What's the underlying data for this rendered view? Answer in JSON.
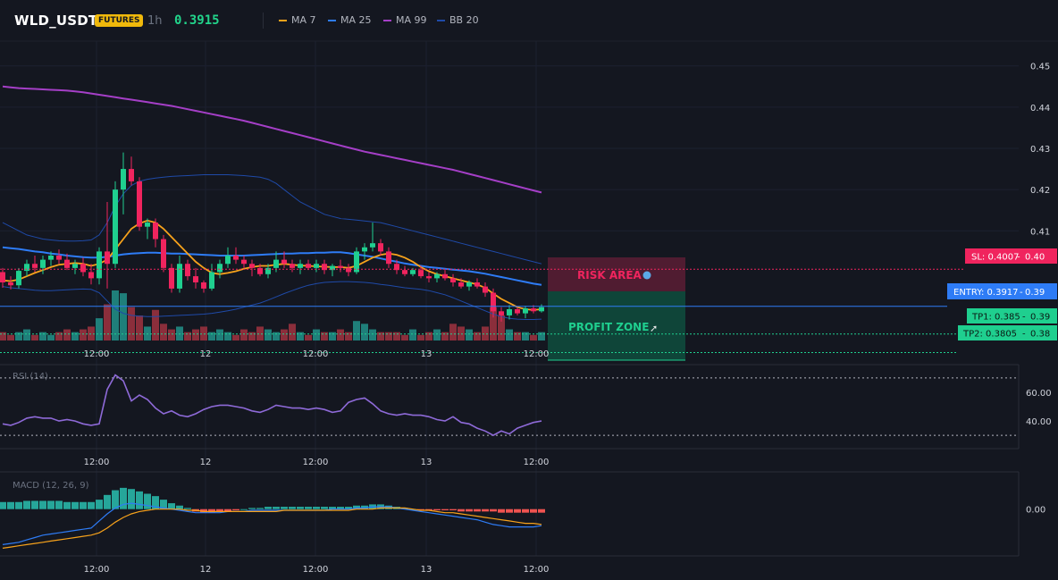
{
  "header": {
    "symbol": "WLD_USDT",
    "badge": "FUTURES",
    "timeframe": "1h",
    "price": "0.3915",
    "indicators": [
      {
        "label": "MA 7",
        "color": "#f7a21b"
      },
      {
        "label": "MA 25",
        "color": "#2e7cf6"
      },
      {
        "label": "MA 99",
        "color": "#a53fc7"
      },
      {
        "label": "BB 20",
        "color": "#1f4aa8"
      }
    ]
  },
  "colors": {
    "up": "#1fcf8f",
    "down": "#f0245e",
    "vol_up": "#1f7f7a",
    "vol_down": "#8b2e3b",
    "rsi": "#8e6ad8",
    "macd_line": "#2e7cf6",
    "signal_line": "#f7a21b",
    "entry": "#2e7cf6",
    "sl": "#f0245e",
    "tp": "#1fcf8f"
  },
  "price_axis_labels": [
    "0.45",
    "0.44",
    "0.43",
    "0.42",
    "0.41"
  ],
  "time_labels": [
    "12:00",
    "12",
    "12:00",
    "13",
    "12:00"
  ],
  "levels": {
    "sl": {
      "label": "SL: 0.4007",
      "axis": "0.40",
      "value": 0.4007
    },
    "entry": {
      "label": "ENTRY: 0.3917",
      "axis": "0.39",
      "value": 0.3917
    },
    "tp1": {
      "label": "TP1: 0.385",
      "axis": "0.39",
      "value": 0.385
    },
    "tp2": {
      "label": "TP2: 0.3805",
      "axis": "0.38",
      "value": 0.3805
    }
  },
  "zones": {
    "risk": "RISK AREA",
    "profit": "PROFIT ZONE"
  },
  "rsi": {
    "title": "RSI (14)",
    "axis_labels": [
      "60.00",
      "40.00"
    ],
    "upper": 70,
    "lower": 30
  },
  "macd": {
    "title": "MACD (12, 26, 9)",
    "axis_labels": [
      "0.00"
    ]
  },
  "chart_data": {
    "type": "candlestick",
    "ylim": [
      0.378,
      0.456
    ],
    "candles": [
      [
        0.4,
        0.401,
        0.3962,
        0.3975
      ],
      [
        0.3975,
        0.399,
        0.3958,
        0.3968
      ],
      [
        0.3968,
        0.401,
        0.396,
        0.4003
      ],
      [
        0.4003,
        0.403,
        0.399,
        0.402
      ],
      [
        0.402,
        0.404,
        0.4,
        0.401
      ],
      [
        0.401,
        0.404,
        0.3995,
        0.403
      ],
      [
        0.403,
        0.405,
        0.4015,
        0.404
      ],
      [
        0.404,
        0.4055,
        0.402,
        0.403
      ],
      [
        0.403,
        0.4045,
        0.4005,
        0.401
      ],
      [
        0.401,
        0.403,
        0.3995,
        0.402
      ],
      [
        0.402,
        0.4035,
        0.399,
        0.4
      ],
      [
        0.4,
        0.402,
        0.397,
        0.3985
      ],
      [
        0.3985,
        0.406,
        0.397,
        0.405
      ],
      [
        0.405,
        0.417,
        0.396,
        0.402
      ],
      [
        0.402,
        0.422,
        0.401,
        0.42
      ],
      [
        0.42,
        0.429,
        0.414,
        0.425
      ],
      [
        0.425,
        0.428,
        0.421,
        0.422
      ],
      [
        0.422,
        0.423,
        0.41,
        0.411
      ],
      [
        0.411,
        0.413,
        0.408,
        0.412
      ],
      [
        0.412,
        0.413,
        0.406,
        0.408
      ],
      [
        0.408,
        0.409,
        0.4,
        0.401
      ],
      [
        0.401,
        0.402,
        0.395,
        0.396
      ],
      [
        0.396,
        0.404,
        0.395,
        0.402
      ],
      [
        0.402,
        0.403,
        0.398,
        0.399
      ],
      [
        0.399,
        0.401,
        0.396,
        0.3975
      ],
      [
        0.3975,
        0.398,
        0.395,
        0.396
      ],
      [
        0.396,
        0.402,
        0.3955,
        0.4
      ],
      [
        0.4,
        0.403,
        0.3985,
        0.402
      ],
      [
        0.402,
        0.406,
        0.401,
        0.404
      ],
      [
        0.404,
        0.406,
        0.402,
        0.403
      ],
      [
        0.403,
        0.404,
        0.401,
        0.402
      ],
      [
        0.402,
        0.403,
        0.399,
        0.401
      ],
      [
        0.401,
        0.402,
        0.399,
        0.3995
      ],
      [
        0.3995,
        0.402,
        0.3985,
        0.401
      ],
      [
        0.401,
        0.405,
        0.4,
        0.403
      ],
      [
        0.403,
        0.405,
        0.401,
        0.402
      ],
      [
        0.402,
        0.403,
        0.4,
        0.401
      ],
      [
        0.401,
        0.403,
        0.3995,
        0.402
      ],
      [
        0.402,
        0.403,
        0.4005,
        0.401
      ],
      [
        0.401,
        0.403,
        0.4,
        0.402
      ],
      [
        0.402,
        0.403,
        0.3995,
        0.4005
      ],
      [
        0.4005,
        0.402,
        0.399,
        0.4015
      ],
      [
        0.4015,
        0.403,
        0.4,
        0.401
      ],
      [
        0.401,
        0.402,
        0.399,
        0.4
      ],
      [
        0.4,
        0.406,
        0.3995,
        0.405
      ],
      [
        0.405,
        0.407,
        0.403,
        0.406
      ],
      [
        0.406,
        0.412,
        0.405,
        0.407
      ],
      [
        0.407,
        0.408,
        0.404,
        0.405
      ],
      [
        0.405,
        0.406,
        0.401,
        0.402
      ],
      [
        0.402,
        0.403,
        0.3995,
        0.4005
      ],
      [
        0.4005,
        0.4015,
        0.399,
        0.3995
      ],
      [
        0.3995,
        0.401,
        0.399,
        0.4005
      ],
      [
        0.4005,
        0.4015,
        0.3985,
        0.399
      ],
      [
        0.399,
        0.4,
        0.3975,
        0.3985
      ],
      [
        0.3985,
        0.4,
        0.3975,
        0.3995
      ],
      [
        0.3995,
        0.4005,
        0.398,
        0.3985
      ],
      [
        0.3985,
        0.3995,
        0.3965,
        0.3975
      ],
      [
        0.3975,
        0.3985,
        0.396,
        0.3965
      ],
      [
        0.3965,
        0.398,
        0.3955,
        0.3975
      ],
      [
        0.3975,
        0.3985,
        0.396,
        0.3965
      ],
      [
        0.3965,
        0.3975,
        0.394,
        0.395
      ],
      [
        0.395,
        0.396,
        0.389,
        0.3905
      ],
      [
        0.3905,
        0.3915,
        0.388,
        0.3895
      ],
      [
        0.3895,
        0.392,
        0.3885,
        0.391
      ],
      [
        0.391,
        0.3915,
        0.3895,
        0.39
      ],
      [
        0.39,
        0.3918,
        0.3888,
        0.3912
      ],
      [
        0.3912,
        0.392,
        0.39,
        0.3905
      ],
      [
        0.3905,
        0.3922,
        0.3902,
        0.3915
      ]
    ],
    "volume": [
      3,
      2,
      3,
      4,
      2,
      3,
      2,
      3,
      4,
      3,
      4,
      5,
      8,
      13,
      18,
      17,
      12,
      9,
      5,
      11,
      6,
      4,
      5,
      3,
      4,
      5,
      3,
      4,
      3,
      2,
      4,
      3,
      5,
      4,
      3,
      4,
      6,
      3,
      2,
      4,
      3,
      3,
      4,
      3,
      7,
      6,
      4,
      3,
      3,
      3,
      2,
      4,
      2,
      3,
      4,
      3,
      6,
      5,
      4,
      3,
      5,
      12,
      9,
      4,
      3,
      3,
      2,
      3
    ],
    "ma7": [
      0.398,
      0.3978,
      0.3982,
      0.399,
      0.3998,
      0.4005,
      0.4012,
      0.4018,
      0.402,
      0.4022,
      0.402,
      0.4015,
      0.402,
      0.403,
      0.4055,
      0.408,
      0.4105,
      0.4118,
      0.4125,
      0.412,
      0.4105,
      0.4085,
      0.4065,
      0.4045,
      0.4025,
      0.401,
      0.3998,
      0.3995,
      0.3998,
      0.4002,
      0.4008,
      0.4012,
      0.4015,
      0.4015,
      0.4018,
      0.402,
      0.4018,
      0.4016,
      0.4015,
      0.4014,
      0.4013,
      0.4012,
      0.4012,
      0.401,
      0.4015,
      0.4025,
      0.4035,
      0.4042,
      0.4045,
      0.4042,
      0.4035,
      0.4025,
      0.4012,
      0.4002,
      0.3995,
      0.399,
      0.3985,
      0.398,
      0.3975,
      0.397,
      0.3962,
      0.3948,
      0.3935,
      0.3925,
      0.3915,
      0.391,
      0.3908,
      0.391
    ],
    "ma25": [
      0.406,
      0.4058,
      0.4056,
      0.4053,
      0.405,
      0.4048,
      0.4045,
      0.4043,
      0.404,
      0.4038,
      0.4036,
      0.4035,
      0.4035,
      0.4037,
      0.404,
      0.4043,
      0.4045,
      0.4046,
      0.4047,
      0.4047,
      0.4046,
      0.4045,
      0.4045,
      0.4044,
      0.4043,
      0.4042,
      0.4041,
      0.404,
      0.404,
      0.404,
      0.404,
      0.4041,
      0.4042,
      0.4043,
      0.4044,
      0.4045,
      0.4045,
      0.4046,
      0.4046,
      0.4047,
      0.4047,
      0.4048,
      0.4048,
      0.4046,
      0.4043,
      0.404,
      0.4037,
      0.4033,
      0.4029,
      0.4025,
      0.4021,
      0.4018,
      0.4015,
      0.4012,
      0.401,
      0.4008,
      0.4006,
      0.4004,
      0.4002,
      0.3999,
      0.3996,
      0.3992,
      0.3988,
      0.3984,
      0.398,
      0.3976,
      0.3972,
      0.3969
    ],
    "ma99": [
      0.445,
      0.4448,
      0.4446,
      0.4445,
      0.4444,
      0.4443,
      0.4442,
      0.4441,
      0.444,
      0.4438,
      0.4436,
      0.4433,
      0.443,
      0.4427,
      0.4424,
      0.4421,
      0.4418,
      0.4415,
      0.4412,
      0.4409,
      0.4406,
      0.4403,
      0.4399,
      0.4395,
      0.4391,
      0.4387,
      0.4383,
      0.4379,
      0.4375,
      0.4371,
      0.4367,
      0.4362,
      0.4357,
      0.4352,
      0.4347,
      0.4342,
      0.4337,
      0.4332,
      0.4327,
      0.4322,
      0.4317,
      0.4312,
      0.4307,
      0.4302,
      0.4297,
      0.4292,
      0.4288,
      0.4284,
      0.428,
      0.4276,
      0.4272,
      0.4268,
      0.4264,
      0.426,
      0.4256,
      0.4252,
      0.4248,
      0.4243,
      0.4238,
      0.4233,
      0.4228,
      0.4223,
      0.4218,
      0.4213,
      0.4208,
      0.4203,
      0.4198,
      0.4193
    ],
    "bb_upper": [
      0.412,
      0.411,
      0.41,
      0.409,
      0.4085,
      0.408,
      0.4078,
      0.4076,
      0.4075,
      0.4075,
      0.4076,
      0.4078,
      0.409,
      0.412,
      0.416,
      0.419,
      0.421,
      0.422,
      0.4225,
      0.4228,
      0.423,
      0.4232,
      0.4233,
      0.4234,
      0.4235,
      0.4236,
      0.4236,
      0.4236,
      0.4236,
      0.4235,
      0.4234,
      0.4232,
      0.423,
      0.4225,
      0.4215,
      0.42,
      0.4185,
      0.417,
      0.416,
      0.415,
      0.414,
      0.4135,
      0.413,
      0.4128,
      0.4126,
      0.4124,
      0.4122,
      0.412,
      0.4115,
      0.411,
      0.4105,
      0.41,
      0.4095,
      0.409,
      0.4085,
      0.408,
      0.4075,
      0.407,
      0.4065,
      0.406,
      0.4055,
      0.405,
      0.4045,
      0.404,
      0.4035,
      0.403,
      0.4025,
      0.402
    ],
    "bb_lower": [
      0.3965,
      0.3962,
      0.396,
      0.3958,
      0.3956,
      0.3955,
      0.3955,
      0.3956,
      0.3957,
      0.3958,
      0.3959,
      0.3958,
      0.395,
      0.393,
      0.391,
      0.39,
      0.3895,
      0.3893,
      0.3892,
      0.3892,
      0.3893,
      0.3894,
      0.3895,
      0.3896,
      0.3897,
      0.3898,
      0.39,
      0.3903,
      0.3906,
      0.391,
      0.3915,
      0.392,
      0.3925,
      0.3932,
      0.394,
      0.3948,
      0.3955,
      0.3962,
      0.3968,
      0.3972,
      0.3975,
      0.3976,
      0.3977,
      0.3977,
      0.3976,
      0.3975,
      0.3973,
      0.397,
      0.3968,
      0.3965,
      0.3962,
      0.396,
      0.3958,
      0.3955,
      0.395,
      0.3945,
      0.3938,
      0.393,
      0.3922,
      0.3914,
      0.3906,
      0.3898,
      0.3892,
      0.3888,
      0.3886,
      0.3885,
      0.3885,
      0.3886
    ],
    "rsi_values": [
      38,
      37,
      39,
      42,
      43,
      42,
      42,
      40,
      41,
      40,
      38,
      37,
      38,
      62,
      72,
      68,
      54,
      58,
      55,
      49,
      45,
      47,
      44,
      43,
      45,
      48,
      50,
      51,
      51,
      50,
      49,
      47,
      46,
      48,
      51,
      50,
      49,
      49,
      48,
      49,
      48,
      46,
      47,
      53,
      55,
      56,
      52,
      47,
      45,
      44,
      45,
      44,
      44,
      43,
      41,
      40,
      43,
      39,
      38,
      35,
      33,
      30,
      33,
      31,
      35,
      37,
      39,
      40
    ],
    "rsi_ylim": [
      22,
      78
    ],
    "macd_hist": [
      0.0006,
      0.0006,
      0.0006,
      0.0007,
      0.0007,
      0.0007,
      0.0007,
      0.0007,
      0.0006,
      0.0006,
      0.0006,
      0.0006,
      0.0008,
      0.0012,
      0.0016,
      0.0018,
      0.0017,
      0.0015,
      0.0013,
      0.0011,
      0.0008,
      0.0005,
      0.0003,
      0.0001,
      -0.0002,
      -0.0003,
      -0.0003,
      -0.0002,
      -0.0002,
      -0.0001,
      0.0,
      0.0001,
      0.0001,
      0.0002,
      0.0002,
      0.0002,
      0.0002,
      0.0002,
      0.0002,
      0.0002,
      0.0002,
      0.0002,
      0.0002,
      0.0002,
      0.0003,
      0.0003,
      0.0004,
      0.0004,
      0.0003,
      0.0002,
      0.0001,
      0.0,
      -0.0001,
      -0.0001,
      -0.0001,
      -0.0001,
      -0.0001,
      -0.0002,
      -0.0002,
      -0.0002,
      -0.0002,
      -0.0002,
      -0.0003,
      -0.0003,
      -0.0003,
      -0.0003,
      -0.0003,
      -0.0003
    ],
    "macd_line": [
      -0.003,
      -0.0029,
      -0.0028,
      -0.0026,
      -0.0024,
      -0.0022,
      -0.0021,
      -0.002,
      -0.0019,
      -0.0018,
      -0.0017,
      -0.0016,
      -0.001,
      -0.0004,
      0.0001,
      0.0004,
      0.0005,
      0.0004,
      0.0003,
      0.0002,
      0.0001,
      0.0,
      -0.0001,
      -0.0002,
      -0.0003,
      -0.0003,
      -0.0003,
      -0.0003,
      -0.0002,
      -0.0002,
      -0.0002,
      -0.0001,
      -0.0001,
      -0.0001,
      -0.0001,
      -0.0001,
      -0.0001,
      -0.0001,
      -0.0001,
      -0.0001,
      -0.0001,
      0.0,
      0.0,
      0.0,
      0.0001,
      0.0001,
      0.0002,
      0.0002,
      0.0002,
      0.0001,
      0.0,
      -0.0001,
      -0.0002,
      -0.0003,
      -0.0004,
      -0.0005,
      -0.0006,
      -0.0007,
      -0.0008,
      -0.0009,
      -0.0011,
      -0.0013,
      -0.0014,
      -0.0015,
      -0.0015,
      -0.0015,
      -0.0015,
      -0.0014
    ],
    "signal_line": [
      -0.0033,
      -0.0032,
      -0.0031,
      -0.003,
      -0.0029,
      -0.0028,
      -0.0027,
      -0.0026,
      -0.0025,
      -0.0024,
      -0.0023,
      -0.0022,
      -0.002,
      -0.0016,
      -0.0011,
      -0.0007,
      -0.0004,
      -0.0002,
      -0.0001,
      0.0,
      0.0,
      0.0,
      0.0,
      -0.0001,
      -0.0001,
      -0.0002,
      -0.0002,
      -0.0002,
      -0.0002,
      -0.0002,
      -0.0002,
      -0.0002,
      -0.0002,
      -0.0002,
      -0.0002,
      -0.0001,
      -0.0001,
      -0.0001,
      -0.0001,
      -0.0001,
      -0.0001,
      -0.0001,
      -0.0001,
      -0.0001,
      0.0,
      0.0,
      0.0,
      0.0001,
      0.0001,
      0.0001,
      0.0001,
      0.0,
      -0.0001,
      -0.0001,
      -0.0002,
      -0.0003,
      -0.0003,
      -0.0004,
      -0.0005,
      -0.0006,
      -0.0007,
      -0.0008,
      -0.0009,
      -0.001,
      -0.0011,
      -0.0012,
      -0.0012,
      -0.0013
    ],
    "macd_ylim": [
      -0.0038,
      0.003
    ]
  }
}
